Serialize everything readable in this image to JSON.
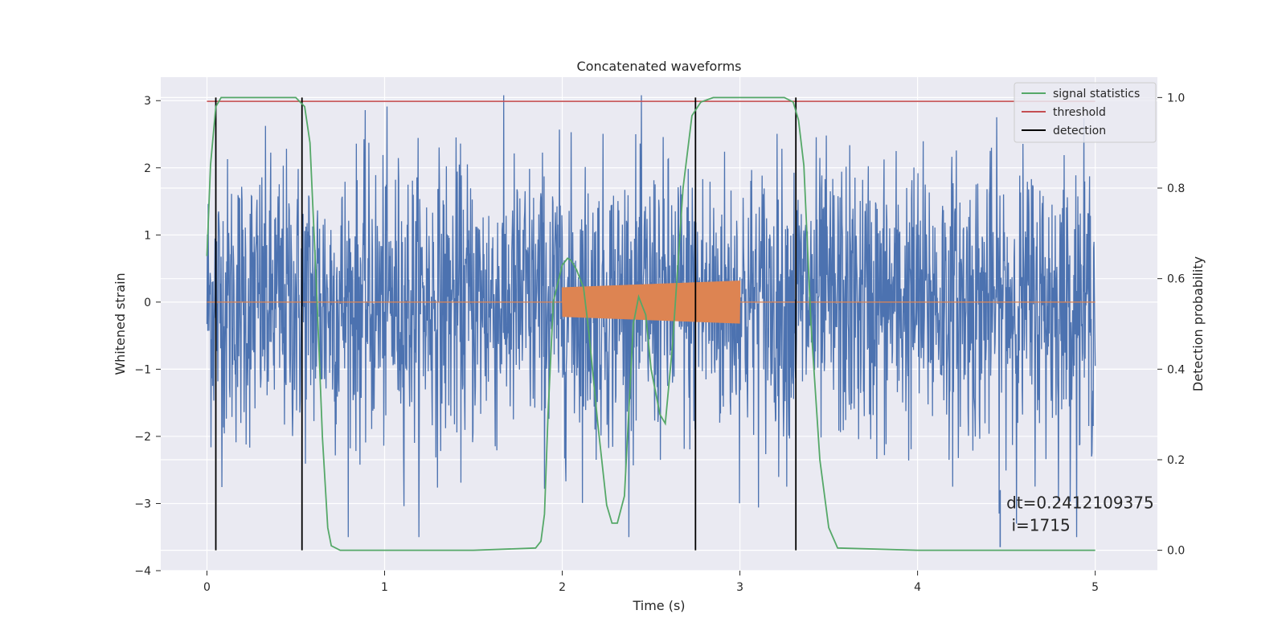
{
  "chart_data": {
    "type": "line",
    "title": "Concatenated waveforms",
    "xlabel": "Time (s)",
    "ylabel": "Whitened strain",
    "y2label": "Detection probability",
    "xlim": [
      -0.26,
      5.35
    ],
    "ylim": [
      -4.0,
      3.35
    ],
    "y2lim": [
      -0.045,
      1.045
    ],
    "xticks": [
      0,
      1,
      2,
      3,
      4,
      5
    ],
    "xtick_labels": [
      "0",
      "1",
      "2",
      "3",
      "4",
      "5"
    ],
    "yticks": [
      -4,
      -3,
      -2,
      -1,
      0,
      1,
      2,
      3
    ],
    "ytick_labels": [
      "−4",
      "−3",
      "−2",
      "−1",
      "0",
      "1",
      "2",
      "3"
    ],
    "y2ticks": [
      0.0,
      0.2,
      0.4,
      0.6,
      0.8,
      1.0
    ],
    "y2tick_labels": [
      "0.0",
      "0.2",
      "0.4",
      "0.6",
      "0.8",
      "1.0"
    ],
    "grid": true,
    "legend_placement": "top-right",
    "legend": [
      {
        "label": "signal statistics",
        "color": "#55a868"
      },
      {
        "label": "threshold",
        "color": "#c44e52"
      },
      {
        "label": "detection",
        "color": "#000000"
      }
    ],
    "series": [
      {
        "role": "strain",
        "color": "#4c72b0",
        "x_range": [
          0,
          5
        ],
        "amplitude_approx": 2.5,
        "axis": "left"
      },
      {
        "role": "waveform",
        "color": "#dd8452",
        "x": [
          0,
          2.0,
          2.0,
          3.0,
          3.0,
          5.0
        ],
        "amplitude_start": 0.22,
        "amplitude_end": 0.32,
        "axis": "left"
      },
      {
        "name": "signal statistics",
        "color": "#55a868",
        "axis": "right",
        "x": [
          0,
          0.02,
          0.05,
          0.08,
          0.12,
          0.2,
          0.5,
          0.55,
          0.58,
          0.62,
          0.65,
          0.68,
          0.7,
          0.75,
          1.0,
          1.5,
          1.85,
          1.88,
          1.9,
          1.92,
          1.95,
          2.0,
          2.03,
          2.05,
          2.08,
          2.12,
          2.15,
          2.2,
          2.25,
          2.28,
          2.31,
          2.35,
          2.4,
          2.43,
          2.47,
          2.5,
          2.55,
          2.58,
          2.62,
          2.68,
          2.73,
          2.78,
          2.85,
          3.25,
          3.3,
          3.33,
          3.36,
          3.4,
          3.45,
          3.5,
          3.55,
          4.0,
          5.0
        ],
        "y": [
          0.65,
          0.85,
          0.98,
          1.0,
          1.0,
          1.0,
          1.0,
          0.98,
          0.9,
          0.55,
          0.25,
          0.05,
          0.01,
          0.0,
          0.0,
          0.0,
          0.005,
          0.02,
          0.08,
          0.3,
          0.55,
          0.63,
          0.645,
          0.64,
          0.62,
          0.58,
          0.48,
          0.28,
          0.1,
          0.06,
          0.06,
          0.12,
          0.5,
          0.56,
          0.52,
          0.4,
          0.3,
          0.28,
          0.45,
          0.8,
          0.96,
          0.99,
          1.0,
          1.0,
          0.99,
          0.95,
          0.85,
          0.5,
          0.2,
          0.05,
          0.005,
          0.0,
          0.0
        ]
      },
      {
        "name": "threshold",
        "color": "#c44e52",
        "axis": "left",
        "x": [
          0,
          5
        ],
        "y": [
          2.99,
          2.99
        ]
      },
      {
        "name": "detection",
        "color": "#000000",
        "axis": "right",
        "type": "vlines",
        "x": [
          0.05,
          0.535,
          2.75,
          3.315
        ],
        "ymin": 0.0,
        "ymax": 1.0
      }
    ],
    "annotation": {
      "text_line1": "dt=0.2412109375",
      "text_line2": " i=1715",
      "x": 4.5,
      "y": -3.0,
      "marker_x": 4.465,
      "marker_y1": -2.8,
      "marker_y2": -3.65,
      "marker_color": "#4c72b0"
    }
  }
}
